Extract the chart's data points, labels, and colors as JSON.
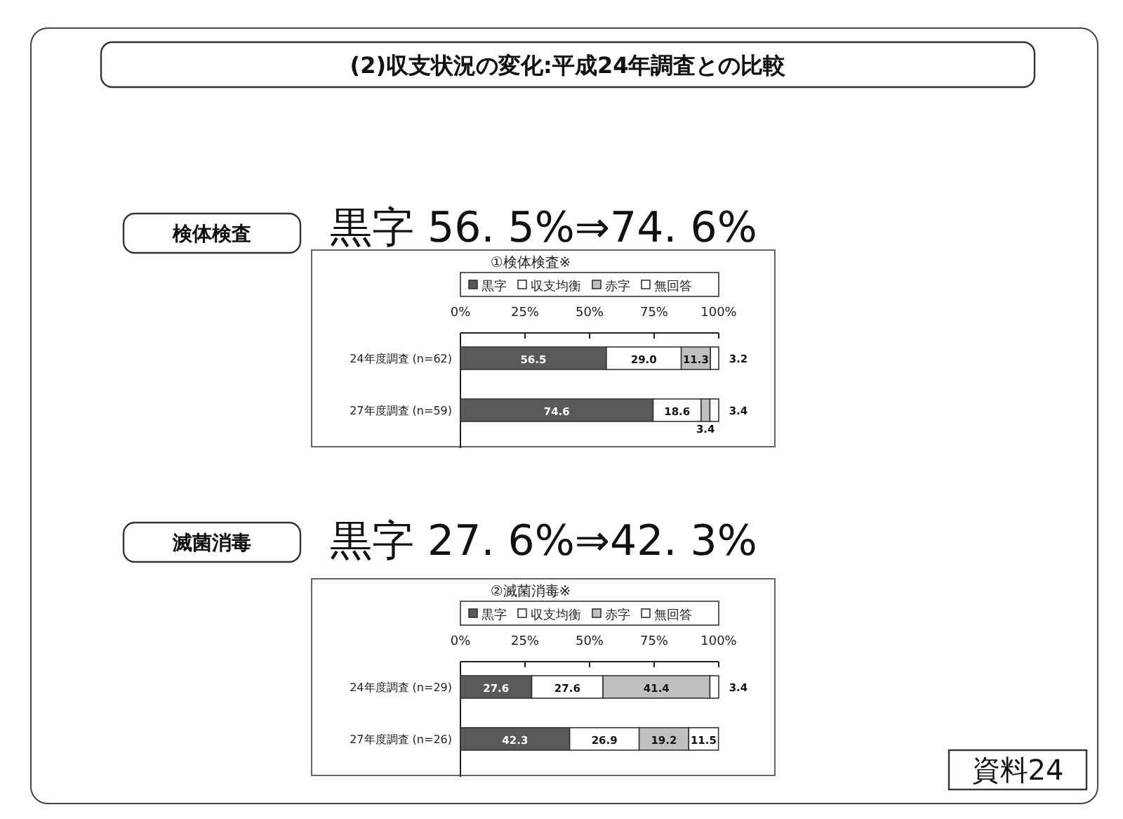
{
  "chart_data": [
    {
      "type": "bar",
      "orientation": "horizontal",
      "stacked": true,
      "title": "①検体検査※",
      "categories": [
        "24年度調査 (n=62)",
        "27年度調査 (n=59)"
      ],
      "series": [
        {
          "name": "黒字",
          "color": "#595959",
          "values": [
            56.5,
            74.6
          ],
          "value_labels": [
            "56.5",
            "74.6"
          ]
        },
        {
          "name": "収支均衡",
          "color": "#ffffff",
          "values": [
            29.0,
            18.6
          ],
          "value_labels": [
            "29.0",
            "18.6"
          ]
        },
        {
          "name": "赤字",
          "color": "#c0c0c0",
          "values": [
            11.3,
            3.4
          ],
          "value_labels": [
            "11.3",
            "3.4"
          ]
        },
        {
          "name": "無回答",
          "color": "#ffffff",
          "values": [
            3.2,
            3.4
          ],
          "value_labels": [
            "3.2",
            "3.4"
          ]
        }
      ],
      "xlim": [
        0,
        100
      ],
      "xticks": [
        {
          "value": 0,
          "label": "0%"
        },
        {
          "value": 25,
          "label": "25%"
        },
        {
          "value": 50,
          "label": "50%"
        },
        {
          "value": 75,
          "label": "75%"
        },
        {
          "value": 100,
          "label": "100%"
        }
      ],
      "legend": "top",
      "grid": false,
      "annotations": [
        "(2)収支状況の変化:平成24年調査との比較",
        "検体検査",
        "黒字 56. 5%⇒74. 6%"
      ]
    },
    {
      "type": "bar",
      "orientation": "horizontal",
      "stacked": true,
      "title": "②滅菌消毒※",
      "categories": [
        "24年度調査 (n=29)",
        "27年度調査 (n=26)"
      ],
      "series": [
        {
          "name": "黒字",
          "color": "#595959",
          "values": [
            27.6,
            42.3
          ],
          "value_labels": [
            "27.6",
            "42.3"
          ]
        },
        {
          "name": "収支均衡",
          "color": "#ffffff",
          "values": [
            27.6,
            26.9
          ],
          "value_labels": [
            "27.6",
            "26.9"
          ]
        },
        {
          "name": "赤字",
          "color": "#c0c0c0",
          "values": [
            41.4,
            19.2
          ],
          "value_labels": [
            "41.4",
            "19.2"
          ]
        },
        {
          "name": "無回答",
          "color": "#ffffff",
          "values": [
            3.4,
            11.5
          ],
          "value_labels": [
            "3.4",
            "11.5"
          ]
        }
      ],
      "xlim": [
        0,
        100
      ],
      "xticks": [
        {
          "value": 0,
          "label": "0%"
        },
        {
          "value": 25,
          "label": "25%"
        },
        {
          "value": 50,
          "label": "50%"
        },
        {
          "value": 75,
          "label": "75%"
        },
        {
          "value": 100,
          "label": "100%"
        }
      ],
      "legend": "top",
      "grid": false,
      "annotations": [
        "滅菌消毒",
        "黒字 27. 6%⇒42. 3%",
        "資料24"
      ]
    }
  ]
}
